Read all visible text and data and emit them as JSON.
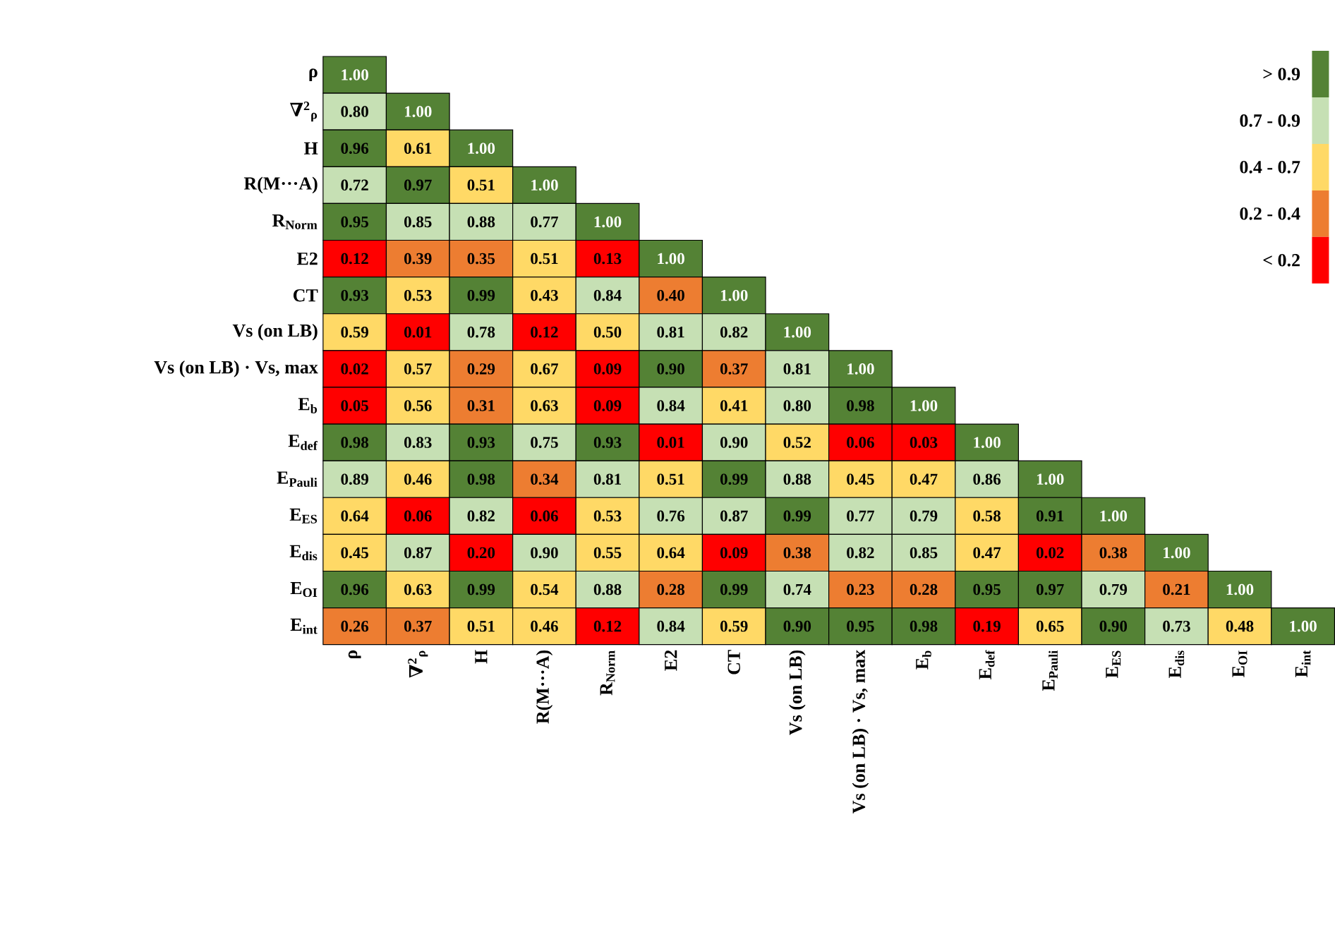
{
  "chart_data": {
    "type": "heatmap",
    "categories": [
      "ρ",
      "∇$^{2}$$_{ρ}$",
      "H",
      "R(M···A)",
      "R$_{Norm}$",
      "E2",
      "CT",
      "Vs (on LB)",
      "Vs (on LB) · Vs, max",
      "E$_{b}$",
      "E$_{def}$",
      "E$_{Pauli}$",
      "E$_{ES}$",
      "E$_{dis}$",
      "E$_{OI}$",
      "E$_{int}$"
    ],
    "y_categories": [
      "ρ",
      "∇$^{2}$$_{ρ}$",
      "H",
      "R(M···A)",
      "R$_{Norm}$",
      "E2",
      "CT",
      "Vs (on LB)",
      "Vs (on LB) · Vs, max",
      "E$_{b}$",
      "E$_{def}$",
      "E$_{Pauli}$",
      "E$_{ES}$",
      "E$_{dis}$",
      "E$_{OI}$",
      "E$_{int}$"
    ],
    "cells": [
      [
        1.0,
        null,
        null,
        null,
        null,
        null,
        null,
        null,
        null,
        null,
        null,
        null,
        null,
        null,
        null,
        null
      ],
      [
        0.8,
        1.0,
        null,
        null,
        null,
        null,
        null,
        null,
        null,
        null,
        null,
        null,
        null,
        null,
        null,
        null
      ],
      [
        0.96,
        0.61,
        1.0,
        null,
        null,
        null,
        null,
        null,
        null,
        null,
        null,
        null,
        null,
        null,
        null,
        null
      ],
      [
        0.72,
        0.97,
        0.51,
        1.0,
        null,
        null,
        null,
        null,
        null,
        null,
        null,
        null,
        null,
        null,
        null,
        null
      ],
      [
        0.95,
        0.85,
        0.88,
        0.77,
        1.0,
        null,
        null,
        null,
        null,
        null,
        null,
        null,
        null,
        null,
        null,
        null
      ],
      [
        0.12,
        0.39,
        0.35,
        0.51,
        0.13,
        1.0,
        null,
        null,
        null,
        null,
        null,
        null,
        null,
        null,
        null,
        null
      ],
      [
        0.93,
        0.53,
        0.99,
        0.43,
        0.84,
        0.4,
        1.0,
        null,
        null,
        null,
        null,
        null,
        null,
        null,
        null,
        null
      ],
      [
        0.59,
        0.01,
        0.78,
        0.12,
        0.5,
        0.81,
        0.82,
        1.0,
        null,
        null,
        null,
        null,
        null,
        null,
        null,
        null
      ],
      [
        0.02,
        0.57,
        0.29,
        0.67,
        0.09,
        0.9,
        0.37,
        0.81,
        1.0,
        null,
        null,
        null,
        null,
        null,
        null,
        null
      ],
      [
        0.05,
        0.56,
        0.31,
        0.63,
        0.09,
        0.84,
        0.41,
        0.8,
        0.98,
        1.0,
        null,
        null,
        null,
        null,
        null,
        null
      ],
      [
        0.98,
        0.83,
        0.93,
        0.75,
        0.93,
        0.01,
        0.9,
        0.52,
        0.06,
        0.03,
        1.0,
        null,
        null,
        null,
        null,
        null
      ],
      [
        0.89,
        0.46,
        0.98,
        0.34,
        0.81,
        0.51,
        0.99,
        0.88,
        0.45,
        0.47,
        0.86,
        1.0,
        null,
        null,
        null,
        null
      ],
      [
        0.64,
        0.06,
        0.82,
        0.06,
        0.53,
        0.76,
        0.87,
        0.99,
        0.77,
        0.79,
        0.58,
        0.91,
        1.0,
        null,
        null,
        null
      ],
      [
        0.45,
        0.87,
        0.2,
        0.9,
        0.55,
        0.64,
        0.09,
        0.38,
        0.82,
        0.85,
        0.47,
        0.02,
        0.38,
        1.0,
        null,
        null
      ],
      [
        0.96,
        0.63,
        0.99,
        0.54,
        0.88,
        0.28,
        0.99,
        0.74,
        0.23,
        0.28,
        0.95,
        0.97,
        0.79,
        0.21,
        1.0,
        null
      ],
      [
        0.26,
        0.37,
        0.51,
        0.46,
        0.12,
        0.84,
        0.59,
        0.9,
        0.95,
        0.98,
        0.19,
        0.65,
        0.9,
        0.73,
        0.48,
        1.0
      ]
    ],
    "cell_labels": [
      [
        "1.00",
        null,
        null,
        null,
        null,
        null,
        null,
        null,
        null,
        null,
        null,
        null,
        null,
        null,
        null,
        null
      ],
      [
        "0.80",
        "1.00",
        null,
        null,
        null,
        null,
        null,
        null,
        null,
        null,
        null,
        null,
        null,
        null,
        null,
        null
      ],
      [
        "0.96",
        "0.61",
        "1.00",
        null,
        null,
        null,
        null,
        null,
        null,
        null,
        null,
        null,
        null,
        null,
        null,
        null
      ],
      [
        "0.72",
        "0.97",
        "0.51",
        "1.00",
        null,
        null,
        null,
        null,
        null,
        null,
        null,
        null,
        null,
        null,
        null,
        null
      ],
      [
        "0.95",
        "0.85",
        "0.88",
        "0.77",
        "1.00",
        null,
        null,
        null,
        null,
        null,
        null,
        null,
        null,
        null,
        null,
        null
      ],
      [
        "0.12",
        "0.39",
        "0.35",
        "0.51",
        "0.13",
        "1.00",
        null,
        null,
        null,
        null,
        null,
        null,
        null,
        null,
        null,
        null
      ],
      [
        "0.93",
        "0.53",
        "0.99",
        "0.43",
        "0.84",
        "0.40",
        "1.00",
        null,
        null,
        null,
        null,
        null,
        null,
        null,
        null,
        null
      ],
      [
        "0.59",
        "0.01",
        "0.78",
        "0.12",
        "0.50",
        "0.81",
        "0.82",
        "1.00",
        null,
        null,
        null,
        null,
        null,
        null,
        null,
        null
      ],
      [
        "0.02",
        "0.57",
        "0.29",
        "0.67",
        "0.09",
        "0.90",
        "0.37",
        "0.81",
        "1.00",
        null,
        null,
        null,
        null,
        null,
        null,
        null
      ],
      [
        "0.05",
        "0.56",
        "0.31",
        "0.63",
        "0.09",
        "0.84",
        "0.41",
        "0.80",
        "0.98",
        "1.00",
        null,
        null,
        null,
        null,
        null,
        null
      ],
      [
        "0.98",
        "0.83",
        "0.93",
        "0.75",
        "0.93",
        "0.01",
        "0.90",
        "0.52",
        "0.06",
        "0.03",
        "1.00",
        null,
        null,
        null,
        null,
        null
      ],
      [
        "0.89",
        "0.46",
        "0.98",
        "0.34",
        "0.81",
        "0.51",
        "0.99",
        "0.88",
        "0.45",
        "0.47",
        "0.86",
        "1.00",
        null,
        null,
        null,
        null
      ],
      [
        "0.64",
        "0.06",
        "0.82",
        "0.06",
        "0.53",
        "0.76",
        "0.87",
        "0.99",
        "0.77",
        "0.79",
        "0.58",
        "0.91",
        "1.00",
        null,
        null,
        null
      ],
      [
        "0.45",
        "0.87",
        "0.20",
        "0.90",
        "0.55",
        "0.64",
        "0.09",
        "0.38",
        "0.82",
        "0.85",
        "0.47",
        "0.02",
        "0.38",
        "1.00",
        null,
        null
      ],
      [
        "0.96",
        "0.63",
        "0.99",
        "0.54",
        "0.88",
        "0.28",
        "0.99",
        "0.74",
        "0.23",
        "0.28",
        "0.95",
        "0.97",
        "0.79",
        "0.21",
        "1.00",
        null
      ],
      [
        "0.26",
        "0.37",
        "0.51",
        "0.46",
        "0.12",
        "0.84",
        "0.59",
        "0.90",
        "0.95",
        "0.98",
        "0.19",
        "0.65",
        "0.90",
        "0.73",
        "0.48",
        "1.00"
      ]
    ],
    "data_labels": true,
    "annotations": [
      "> 0.9",
      "0.7 - 0.9",
      "0.4 - 0.7",
      "0.2 - 0.4",
      "< 0.2"
    ],
    "colors": [
      [
        "#548235",
        null,
        null,
        null,
        null,
        null,
        null,
        null,
        null,
        null,
        null,
        null,
        null,
        null,
        null,
        null
      ],
      [
        "#c6e0b4",
        "#548235",
        null,
        null,
        null,
        null,
        null,
        null,
        null,
        null,
        null,
        null,
        null,
        null,
        null,
        null
      ],
      [
        "#548235",
        "#ffd966",
        "#548235",
        null,
        null,
        null,
        null,
        null,
        null,
        null,
        null,
        null,
        null,
        null,
        null,
        null
      ],
      [
        "#c6e0b4",
        "#548235",
        "#ffd966",
        "#548235",
        null,
        null,
        null,
        null,
        null,
        null,
        null,
        null,
        null,
        null,
        null,
        null
      ],
      [
        "#548235",
        "#c6e0b4",
        "#c6e0b4",
        "#c6e0b4",
        "#548235",
        null,
        null,
        null,
        null,
        null,
        null,
        null,
        null,
        null,
        null,
        null
      ],
      [
        "#ff0000",
        "#ed7d31",
        "#ed7d31",
        "#ffd966",
        "#ff0000",
        "#548235",
        null,
        null,
        null,
        null,
        null,
        null,
        null,
        null,
        null,
        null
      ],
      [
        "#548235",
        "#ffd966",
        "#548235",
        "#ffd966",
        "#c6e0b4",
        "#ed7d31",
        "#548235",
        null,
        null,
        null,
        null,
        null,
        null,
        null,
        null,
        null
      ],
      [
        "#ffd966",
        "#ff0000",
        "#c6e0b4",
        "#ff0000",
        "#ffd966",
        "#c6e0b4",
        "#c6e0b4",
        "#548235",
        null,
        null,
        null,
        null,
        null,
        null,
        null,
        null
      ],
      [
        "#ff0000",
        "#ffd966",
        "#ed7d31",
        "#ffd966",
        "#ff0000",
        "#548235",
        "#ed7d31",
        "#c6e0b4",
        "#548235",
        null,
        null,
        null,
        null,
        null,
        null,
        null
      ],
      [
        "#ff0000",
        "#ffd966",
        "#ed7d31",
        "#ffd966",
        "#ff0000",
        "#c6e0b4",
        "#ffd966",
        "#c6e0b4",
        "#548235",
        "#548235",
        null,
        null,
        null,
        null,
        null,
        null
      ],
      [
        "#548235",
        "#c6e0b4",
        "#548235",
        "#c6e0b4",
        "#548235",
        "#ff0000",
        "#c6e0b4",
        "#ffd966",
        "#ff0000",
        "#ff0000",
        "#548235",
        null,
        null,
        null,
        null,
        null
      ],
      [
        "#c6e0b4",
        "#ffd966",
        "#548235",
        "#ed7d31",
        "#c6e0b4",
        "#ffd966",
        "#548235",
        "#c6e0b4",
        "#ffd966",
        "#ffd966",
        "#c6e0b4",
        "#548235",
        null,
        null,
        null,
        null
      ],
      [
        "#ffd966",
        "#ff0000",
        "#c6e0b4",
        "#ff0000",
        "#ffd966",
        "#c6e0b4",
        "#c6e0b4",
        "#548235",
        "#c6e0b4",
        "#c6e0b4",
        "#ffd966",
        "#548235",
        "#548235",
        null,
        null,
        null
      ],
      [
        "#ffd966",
        "#c6e0b4",
        "#ff0000",
        "#c6e0b4",
        "#ffd966",
        "#ffd966",
        "#ff0000",
        "#ed7d31",
        "#c6e0b4",
        "#c6e0b4",
        "#ffd966",
        "#ff0000",
        "#ed7d31",
        "#548235",
        null,
        null
      ],
      [
        "#548235",
        "#ffd966",
        "#548235",
        "#ffd966",
        "#c6e0b4",
        "#ed7d31",
        "#548235",
        "#c6e0b4",
        "#ed7d31",
        "#ed7d31",
        "#548235",
        "#548235",
        "#c6e0b4",
        "#ed7d31",
        "#548235",
        null
      ],
      [
        "#ed7d31",
        "#ed7d31",
        "#ffd966",
        "#ffd966",
        "#ff0000",
        "#c6e0b4",
        "#ffd966",
        "#548235",
        "#548235",
        "#548235",
        "#ff0000",
        "#ffd966",
        "#548235",
        "#c6e0b4",
        "#ffd966",
        "#548235"
      ]
    ]
  }
}
